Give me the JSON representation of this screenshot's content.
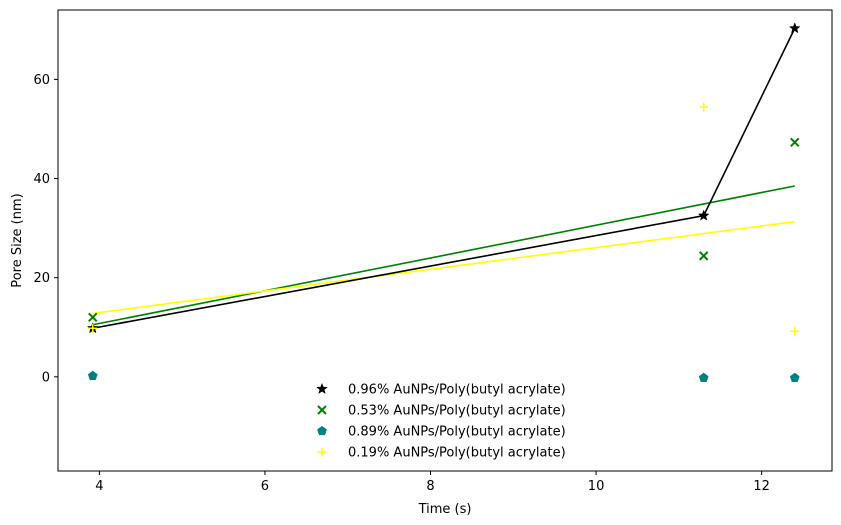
{
  "chart_data": {
    "type": "scatter",
    "xlabel": "Time (s)",
    "ylabel": "Pore Size (nm)",
    "xlim": [
      3.5,
      12.85
    ],
    "ylim": [
      -19,
      74
    ],
    "xticks": [
      4,
      6,
      8,
      10,
      12
    ],
    "yticks": [
      0,
      20,
      40,
      60
    ],
    "grid": false,
    "legend_position": "bottom-center",
    "series": [
      {
        "name": "0.96% AuNPs/Poly(butyl acrylate)",
        "marker": "star",
        "color": "#000000",
        "x": [
          3.92,
          11.3,
          12.4
        ],
        "y": [
          9.8,
          32.5,
          70.3
        ],
        "connected_line": true
      },
      {
        "name": "0.53% AuNPs/Poly(butyl acrylate)",
        "marker": "x",
        "color": "#008000",
        "x": [
          3.92,
          11.3,
          12.4
        ],
        "y": [
          12.0,
          24.4,
          47.3
        ],
        "fit_line": {
          "x": [
            3.92,
            12.4
          ],
          "y": [
            10.5,
            38.5
          ]
        }
      },
      {
        "name": "0.89% AuNPs/Poly(butyl acrylate)",
        "marker": "pentagon",
        "color": "#008080",
        "x": [
          3.92,
          11.3,
          12.4
        ],
        "y": [
          0.2,
          -0.2,
          -0.2
        ]
      },
      {
        "name": "0.19% AuNPs/Poly(butyl acrylate)",
        "marker": "plus",
        "color": "#ffff00",
        "x": [
          3.92,
          11.3,
          12.4
        ],
        "y": [
          9.8,
          54.4,
          9.2
        ],
        "fit_line": {
          "x": [
            3.92,
            12.4
          ],
          "y": [
            12.8,
            31.3
          ]
        }
      }
    ]
  }
}
